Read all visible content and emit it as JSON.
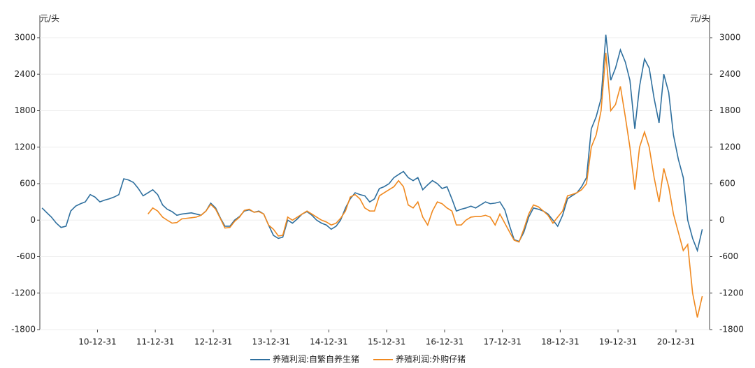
{
  "chart_data": {
    "type": "line",
    "y_unit": "元/头",
    "y2_unit": "元/头",
    "x": [
      "10-01-15",
      "10-02-15",
      "10-03-15",
      "10-04-15",
      "10-05-15",
      "10-06-15",
      "10-07-15",
      "10-08-15",
      "10-09-15",
      "10-10-15",
      "10-11-15",
      "10-12-15",
      "11-01-15",
      "11-02-15",
      "11-03-15",
      "11-04-15",
      "11-05-15",
      "11-06-15",
      "11-07-15",
      "11-08-15",
      "11-09-15",
      "11-10-15",
      "11-11-15",
      "11-12-15",
      "12-01-15",
      "12-02-15",
      "12-03-15",
      "12-04-15",
      "12-05-15",
      "12-06-15",
      "12-07-15",
      "12-08-15",
      "12-09-15",
      "12-10-15",
      "12-11-15",
      "12-12-15",
      "13-01-15",
      "13-02-15",
      "13-03-15",
      "13-04-15",
      "13-05-15",
      "13-06-15",
      "13-07-15",
      "13-08-15",
      "13-09-15",
      "13-10-15",
      "13-11-15",
      "13-12-15",
      "14-01-15",
      "14-02-15",
      "14-03-15",
      "14-04-15",
      "14-05-15",
      "14-06-15",
      "14-07-15",
      "14-08-15",
      "14-09-15",
      "14-10-15",
      "14-11-15",
      "14-12-15",
      "15-01-15",
      "15-02-15",
      "15-03-15",
      "15-04-15",
      "15-05-15",
      "15-06-15",
      "15-07-15",
      "15-08-15",
      "15-09-15",
      "15-10-15",
      "15-11-15",
      "15-12-15",
      "16-01-15",
      "16-02-15",
      "16-03-15",
      "16-04-15",
      "16-05-15",
      "16-06-15",
      "16-07-15",
      "16-08-15",
      "16-09-15",
      "16-10-15",
      "16-11-15",
      "16-12-15",
      "17-01-15",
      "17-02-15",
      "17-03-15",
      "17-04-15",
      "17-05-15",
      "17-06-15",
      "17-07-15",
      "17-08-15",
      "17-09-15",
      "17-10-15",
      "17-11-15",
      "17-12-15",
      "18-01-15",
      "18-02-15",
      "18-03-15",
      "18-04-15",
      "18-05-15",
      "18-06-15",
      "18-07-15",
      "18-08-15",
      "18-09-15",
      "18-10-15",
      "18-11-15",
      "18-12-15",
      "19-01-15",
      "19-02-15",
      "19-03-15",
      "19-04-15",
      "19-05-15",
      "19-06-15",
      "19-07-15",
      "19-08-15",
      "19-09-15",
      "19-10-15",
      "19-11-15",
      "19-12-15",
      "20-01-15",
      "20-02-15",
      "20-03-15",
      "20-04-15",
      "20-05-15",
      "20-06-15",
      "20-07-15",
      "20-08-15",
      "20-09-15",
      "20-10-15",
      "20-11-15",
      "20-12-15",
      "21-01-15",
      "21-02-15",
      "21-03-15",
      "21-04-15",
      "21-05-15",
      "21-06-15"
    ],
    "series": [
      {
        "name": "养殖利润:自繁自养生猪",
        "color": "#2e6f9e",
        "axis": "y",
        "values": [
          200,
          120,
          50,
          -50,
          -120,
          -100,
          150,
          230,
          270,
          300,
          420,
          380,
          300,
          330,
          350,
          380,
          420,
          680,
          660,
          620,
          520,
          400,
          450,
          500,
          420,
          250,
          180,
          140,
          80,
          100,
          110,
          120,
          100,
          80,
          150,
          280,
          200,
          30,
          -100,
          -100,
          0,
          60,
          150,
          170,
          130,
          150,
          100,
          -80,
          -250,
          -300,
          -280,
          0,
          -50,
          20,
          100,
          140,
          80,
          0,
          -50,
          -80,
          -150,
          -100,
          0,
          200,
          350,
          450,
          420,
          400,
          300,
          350,
          520,
          550,
          600,
          700,
          750,
          800,
          700,
          650,
          700,
          500,
          580,
          650,
          600,
          520,
          550,
          350,
          150,
          180,
          200,
          230,
          200,
          250,
          300,
          270,
          280,
          300,
          170,
          -100,
          -320,
          -350,
          -200,
          50,
          200,
          180,
          150,
          100,
          0,
          -100,
          80,
          350,
          400,
          450,
          550,
          700,
          1500,
          1700,
          2000,
          3050,
          2300,
          2500,
          2800,
          2600,
          2300,
          1500,
          2200,
          2650,
          2500,
          2000,
          1600,
          2400,
          2100,
          1400,
          1000,
          700,
          0,
          -300,
          -500,
          -150
        ]
      },
      {
        "name": "养殖利润:外购仔猪",
        "color": "#f0891f",
        "axis": "y2",
        "values": [
          null,
          null,
          null,
          null,
          null,
          null,
          null,
          null,
          null,
          null,
          null,
          null,
          null,
          null,
          null,
          null,
          null,
          null,
          null,
          null,
          null,
          null,
          100,
          200,
          150,
          50,
          0,
          -50,
          -40,
          20,
          30,
          40,
          50,
          80,
          150,
          260,
          180,
          20,
          -130,
          -120,
          -20,
          50,
          160,
          180,
          130,
          140,
          100,
          -80,
          -150,
          -260,
          -250,
          50,
          0,
          50,
          100,
          150,
          100,
          50,
          0,
          -30,
          -80,
          -50,
          30,
          150,
          380,
          420,
          350,
          200,
          150,
          150,
          400,
          450,
          500,
          550,
          650,
          550,
          250,
          200,
          300,
          50,
          -80,
          150,
          300,
          270,
          200,
          150,
          -80,
          -80,
          0,
          50,
          60,
          60,
          80,
          50,
          -80,
          100,
          -50,
          -200,
          -330,
          -360,
          -150,
          100,
          250,
          220,
          150,
          80,
          -50,
          50,
          150,
          400,
          420,
          450,
          500,
          600,
          1200,
          1400,
          1800,
          2750,
          1800,
          1900,
          2200,
          1700,
          1200,
          500,
          1200,
          1450,
          1200,
          700,
          300,
          850,
          550,
          100,
          -200,
          -500,
          -400,
          -1200,
          -1600,
          -1250
        ]
      }
    ],
    "xlim": [
      "10-01-01",
      "21-07-31"
    ],
    "xticks": [
      "10-12-31",
      "11-12-31",
      "12-12-31",
      "13-12-31",
      "14-12-31",
      "15-12-31",
      "16-12-31",
      "17-12-31",
      "18-12-31",
      "19-12-31",
      "20-12-31"
    ],
    "ylim": [
      -1800,
      3000
    ],
    "yticks": [
      3000,
      2400,
      1800,
      1200,
      600,
      0,
      -600,
      -1200,
      -1800
    ],
    "y2lim": [
      -1800,
      3000
    ],
    "y2ticks": [
      3000,
      2400,
      1800,
      1200,
      600,
      0,
      -600,
      -1200,
      -1800
    ],
    "grid": true,
    "legend": "bottom"
  }
}
